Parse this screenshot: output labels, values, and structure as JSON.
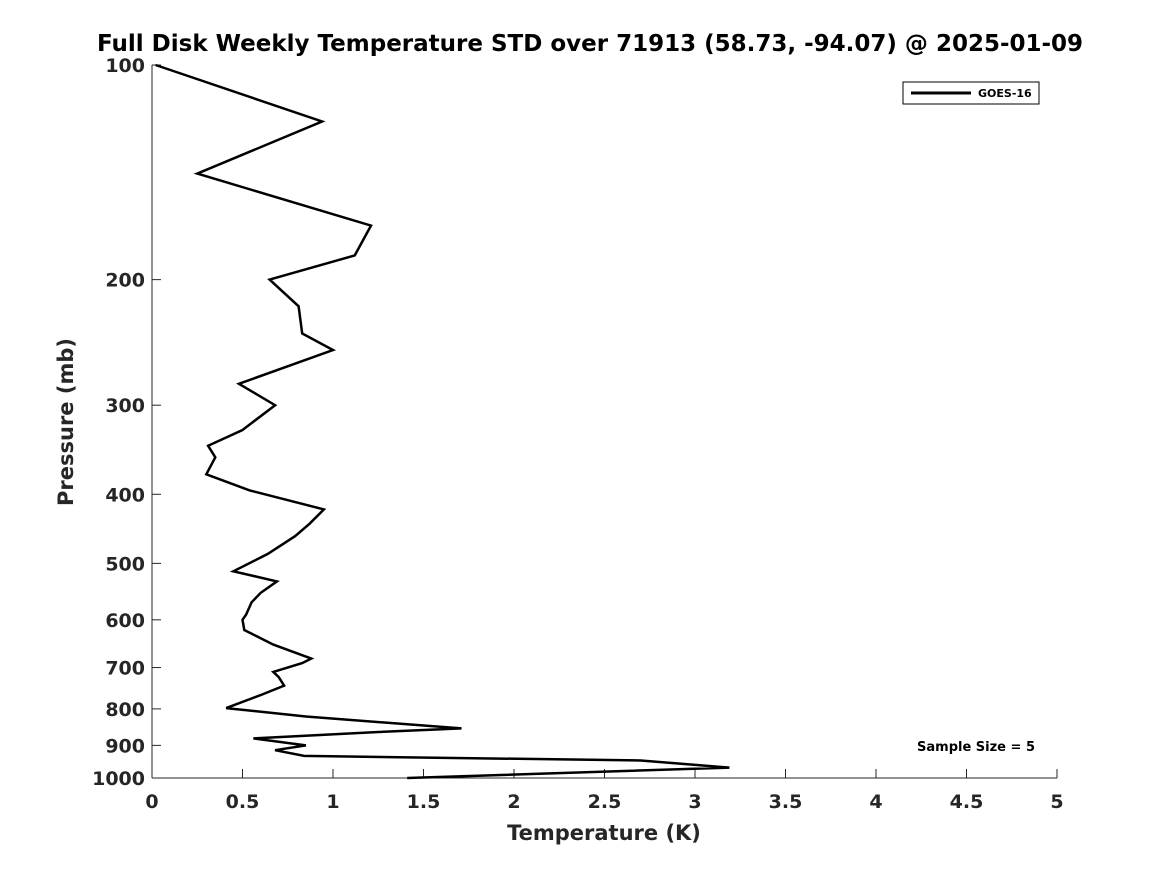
{
  "chart_data": {
    "type": "line",
    "title": "Full Disk Weekly Temperature STD over 71913 (58.73, -94.07) @ 2025-01-09",
    "xlabel": "Temperature (K)",
    "ylabel": "Pressure (mb)",
    "xlim": [
      0,
      5
    ],
    "ylim": [
      1000,
      100
    ],
    "yscale": "log",
    "x_ticks": [
      "0",
      "0.5",
      "1",
      "1.5",
      "2",
      "2.5",
      "3",
      "3.5",
      "4",
      "4.5",
      "5"
    ],
    "x_tick_values": [
      0,
      0.5,
      1,
      1.5,
      2,
      2.5,
      3,
      3.5,
      4,
      4.5,
      5
    ],
    "y_ticks": [
      "100",
      "200",
      "300",
      "400",
      "500",
      "600",
      "700",
      "800",
      "900",
      "1000"
    ],
    "y_tick_values": [
      100,
      200,
      300,
      400,
      500,
      600,
      700,
      800,
      900,
      1000
    ],
    "grid": false,
    "legend": {
      "placement": "top-right",
      "entries": [
        "GOES-16"
      ]
    },
    "annotation": "Sample Size = 5",
    "series": [
      {
        "name": "GOES-16",
        "color": "#000000",
        "x": [
          0.02,
          0.94,
          0.25,
          1.21,
          1.12,
          0.65,
          0.81,
          0.83,
          1.0,
          0.48,
          0.68,
          0.5,
          0.31,
          0.35,
          0.3,
          0.54,
          0.95,
          0.87,
          0.79,
          0.64,
          0.45,
          0.69,
          0.6,
          0.55,
          0.52,
          0.5,
          0.51,
          0.67,
          0.88,
          0.83,
          0.67,
          0.7,
          0.73,
          0.6,
          0.41,
          0.85,
          1.71,
          1.25,
          0.56,
          0.85,
          0.68,
          0.84,
          2.7,
          3.19,
          1.41
        ],
        "y": [
          100,
          120,
          142,
          168,
          185,
          200,
          218,
          238,
          251,
          280,
          300,
          325,
          342,
          355,
          375,
          395,
          420,
          440,
          458,
          485,
          513,
          530,
          550,
          567,
          590,
          600,
          620,
          650,
          680,
          690,
          710,
          722,
          742,
          765,
          798,
          820,
          852,
          862,
          880,
          900,
          914,
          931,
          945,
          967,
          1000
        ]
      }
    ]
  }
}
